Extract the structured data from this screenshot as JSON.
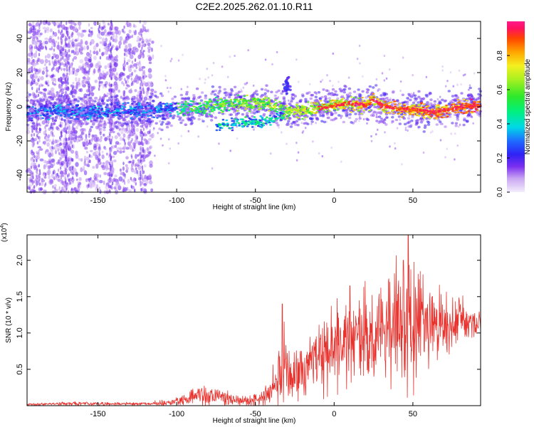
{
  "figure": {
    "title": "C2E2.2025.262.01.10.R11"
  },
  "chart_data": [
    {
      "type": "heatmap",
      "xlabel": "Height of straight line (km)",
      "ylabel": "Frequency (Hz)",
      "xlim": [
        -195,
        93
      ],
      "ylim": [
        -50,
        50
      ],
      "xticks": [
        -150,
        -100,
        -50,
        0,
        50
      ],
      "yticks": [
        -40,
        -20,
        0,
        20,
        40
      ],
      "colorbar": {
        "label": "Normalized spectral amplitude",
        "range": [
          0.0,
          1.0
        ],
        "ticks": [
          0.0,
          0.2,
          0.4,
          0.6,
          0.8
        ],
        "tick_labels": [
          "0.0",
          "0.2",
          "0.4",
          "0.6",
          "0.8"
        ]
      },
      "main_band": [
        {
          "x": -195,
          "y": -3
        },
        {
          "x": -175,
          "y": -2
        },
        {
          "x": -150,
          "y": -3
        },
        {
          "x": -125,
          "y": -2
        },
        {
          "x": -100,
          "y": -1
        },
        {
          "x": -85,
          "y": 0
        },
        {
          "x": -75,
          "y": 1
        },
        {
          "x": -60,
          "y": 2
        },
        {
          "x": -45,
          "y": 2
        },
        {
          "x": -38,
          "y": 1
        },
        {
          "x": -30,
          "y": -3
        },
        {
          "x": -20,
          "y": -2
        },
        {
          "x": -10,
          "y": -1
        },
        {
          "x": 0,
          "y": 1
        },
        {
          "x": 10,
          "y": 2
        },
        {
          "x": 20,
          "y": 1
        },
        {
          "x": 25,
          "y": 4
        },
        {
          "x": 30,
          "y": 1
        },
        {
          "x": 40,
          "y": -1
        },
        {
          "x": 55,
          "y": -2
        },
        {
          "x": 65,
          "y": -3
        },
        {
          "x": 75,
          "y": -1
        },
        {
          "x": 85,
          "y": 0
        },
        {
          "x": 93,
          "y": 1
        }
      ],
      "lower_branch": [
        {
          "x": -75,
          "y": -11
        },
        {
          "x": -65,
          "y": -10
        },
        {
          "x": -55,
          "y": -9
        },
        {
          "x": -45,
          "y": -9
        },
        {
          "x": -38,
          "y": -7
        },
        {
          "x": -32,
          "y": -4
        }
      ],
      "upper_blob": {
        "x": -30,
        "y": 12
      }
    },
    {
      "type": "line",
      "xlabel": "Height of straight line (km)",
      "ylabel": "SNR (10 * v/v)",
      "exponent_label": "(x10^4)",
      "xlim": [
        -195,
        93
      ],
      "ylim": [
        0,
        23500
      ],
      "xticks": [
        -150,
        -100,
        -50,
        0,
        50
      ],
      "yticks": [
        5000,
        10000,
        15000,
        20000
      ],
      "ytick_labels": [
        "0.5",
        "1.0",
        "1.5",
        "2.0"
      ],
      "series": [
        {
          "name": "SNR",
          "color": "#e8322d",
          "envelope": [
            {
              "x": -195,
              "mean": 150,
              "amp": 120
            },
            {
              "x": -170,
              "mean": 300,
              "amp": 250
            },
            {
              "x": -150,
              "mean": 250,
              "amp": 200
            },
            {
              "x": -120,
              "mean": 250,
              "amp": 200
            },
            {
              "x": -105,
              "mean": 400,
              "amp": 350
            },
            {
              "x": -95,
              "mean": 900,
              "amp": 800
            },
            {
              "x": -85,
              "mean": 1500,
              "amp": 1300
            },
            {
              "x": -75,
              "mean": 1200,
              "amp": 1100
            },
            {
              "x": -60,
              "mean": 700,
              "amp": 600
            },
            {
              "x": -45,
              "mean": 1000,
              "amp": 900
            },
            {
              "x": -38,
              "mean": 2800,
              "amp": 2500
            },
            {
              "x": -33,
              "mean": 6500,
              "amp": 5500
            },
            {
              "x": -28,
              "mean": 3500,
              "amp": 3000
            },
            {
              "x": -20,
              "mean": 4500,
              "amp": 3500
            },
            {
              "x": -10,
              "mean": 6500,
              "amp": 4500
            },
            {
              "x": 0,
              "mean": 8000,
              "amp": 5000
            },
            {
              "x": 10,
              "mean": 9000,
              "amp": 5500
            },
            {
              "x": 20,
              "mean": 9800,
              "amp": 6000
            },
            {
              "x": 30,
              "mean": 10300,
              "amp": 6000
            },
            {
              "x": 40,
              "mean": 11000,
              "amp": 7500
            },
            {
              "x": 47,
              "mean": 11500,
              "amp": 10000
            },
            {
              "x": 55,
              "mean": 11000,
              "amp": 6000
            },
            {
              "x": 65,
              "mean": 11500,
              "amp": 4000
            },
            {
              "x": 80,
              "mean": 11700,
              "amp": 2500
            },
            {
              "x": 93,
              "mean": 11500,
              "amp": 2000
            }
          ],
          "peaks": [
            {
              "x": -33,
              "y": 14000
            },
            {
              "x": 10,
              "y": 16500
            },
            {
              "x": 47,
              "y": 23500
            },
            {
              "x": 44,
              "y": 20000
            }
          ]
        }
      ]
    }
  ]
}
